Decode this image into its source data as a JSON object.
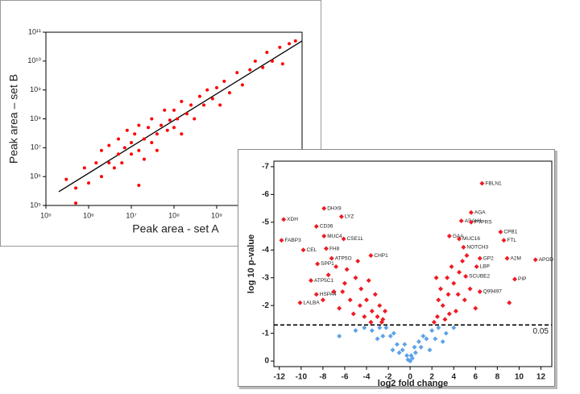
{
  "chart_data": [
    {
      "type": "scatter",
      "x_label": "Peak area - set A",
      "y_label": "Peak area – set B",
      "xscale": "log",
      "yscale": "log",
      "xlim": [
        100000,
        100000000000
      ],
      "ylim": [
        100000,
        100000000000
      ],
      "xticks": [
        {
          "value": 100000,
          "label": "10⁵"
        },
        {
          "value": 1000000,
          "label": "10⁶"
        },
        {
          "value": 10000000,
          "label": "10⁷"
        },
        {
          "value": 100000000,
          "label": "10⁸"
        },
        {
          "value": 1000000000,
          "label": "10⁹"
        }
      ],
      "yticks": [
        {
          "value": 100000,
          "label": "10⁵"
        },
        {
          "value": 1000000,
          "label": "10⁶"
        },
        {
          "value": 10000000,
          "label": "10⁷"
        },
        {
          "value": 100000000,
          "label": "10⁸"
        },
        {
          "value": 1000000000,
          "label": "10⁹"
        },
        {
          "value": 10000000000,
          "label": "10¹⁰"
        },
        {
          "value": 100000000000,
          "label": "10¹¹"
        }
      ],
      "color": "#ff0000",
      "x": [
        300000.0,
        500000.0,
        800000.0,
        1000000.0,
        1500000.0,
        2000000.0,
        2000000.0,
        3000000.0,
        3000000.0,
        4000000.0,
        5000000.0,
        5000000.0,
        6000000.0,
        7000000.0,
        8000000.0,
        10000000.0,
        10000000.0,
        12000000.0,
        15000000.0,
        15000000.0,
        20000000.0,
        20000000.0,
        25000000.0,
        30000000.0,
        30000000.0,
        40000000.0,
        40000000.0,
        50000000.0,
        60000000.0,
        70000000.0,
        80000000.0,
        100000000.0,
        100000000.0,
        120000000.0,
        150000000.0,
        150000000.0,
        200000000.0,
        250000000.0,
        300000000.0,
        400000000.0,
        500000000.0,
        600000000.0,
        800000000.0,
        1000000000.0,
        1200000000.0,
        1500000000.0,
        2000000000.0,
        3000000000.0,
        4000000000.0,
        6000000000.0,
        8000000000.0,
        12000000000.0,
        15000000000.0,
        20000000000.0,
        30000000000.0,
        35000000000.0,
        50000000000.0,
        70000000000.0,
        15000000.0,
        500000.0
      ],
      "y": [
        800000.0,
        400000.0,
        2000000.0,
        600000.0,
        3000000.0,
        1000000.0,
        8000000.0,
        3000000.0,
        12000000.0,
        2000000.0,
        6000000.0,
        20000000.0,
        3000000.0,
        10000000.0,
        40000000.0,
        6000000.0,
        15000000.0,
        30000000.0,
        8000000.0,
        60000000.0,
        20000000.0,
        4000000.0,
        50000000.0,
        15000000.0,
        100000000.0,
        30000000.0,
        8000000.0,
        60000000.0,
        200000000.0,
        40000000.0,
        90000000.0,
        50000000.0,
        200000000.0,
        100000000.0,
        30000000.0,
        400000000.0,
        150000000.0,
        300000000.0,
        100000000.0,
        600000000.0,
        300000000.0,
        1000000000.0,
        500000000.0,
        1200000000.0,
        300000000.0,
        2000000000.0,
        800000000.0,
        4000000000.0,
        1500000000.0,
        5000000000.0,
        10000000000.0,
        6000000000.0,
        20000000000.0,
        10000000000.0,
        30000000000.0,
        8000000000.0,
        40000000000.0,
        50000000000.0,
        500000.0,
        120000.0
      ],
      "trend_line": {
        "x": [
          200000.0,
          100000000000.0
        ],
        "y": [
          300000.0,
          50000000000.0
        ],
        "color": "#000000"
      }
    },
    {
      "type": "scatter",
      "x_label": "log2 fold change",
      "y_label": "log 10 p-value",
      "xlim": [
        -12.5,
        13
      ],
      "ylim": [
        0.2,
        -7.2
      ],
      "xticks": [
        -12,
        -10,
        -8,
        -6,
        -4,
        -2,
        0,
        2,
        4,
        6,
        8,
        10,
        12
      ],
      "yticks": [
        0,
        -1,
        -2,
        -3,
        -4,
        -5,
        -6,
        -7
      ],
      "series": [
        {
          "color": "#ee1c25",
          "x": [
            -5,
            -4.5,
            -4,
            -3.5,
            -3,
            -2.5,
            -6,
            -5.5,
            -7,
            -6.5,
            -4.2,
            -3.2,
            -5.2,
            -2.8,
            -7.5,
            -6.8,
            -4.8,
            -3.8,
            -2.3,
            -8,
            -5.8,
            -3.6,
            -4.6,
            -6.2,
            -2.6,
            2.5,
            3,
            3.5,
            4,
            4.5,
            3.2,
            2.8,
            4.2,
            5,
            3.8,
            2.2,
            4.8,
            3.4,
            5.5,
            2.6,
            6,
            3.6,
            4.4,
            2.4,
            5.2,
            9.1
          ],
          "y": [
            -3,
            -2.6,
            -2.2,
            -1.8,
            -1.6,
            -1.5,
            -2.8,
            -2.2,
            -2.5,
            -1.9,
            -1.6,
            -2.4,
            -1.7,
            -2,
            -3.1,
            -3.4,
            -3.6,
            -2.9,
            -1.8,
            -2.2,
            -3.3,
            -1.4,
            -2,
            -2.5,
            -1.4,
            -1.6,
            -2,
            -2.4,
            -2.8,
            -3.2,
            -1.5,
            -2.6,
            -1.8,
            -2.2,
            -3.4,
            -1.4,
            -3.6,
            -3,
            -2.6,
            -2.2,
            -1.9,
            -1.7,
            -2.4,
            -3,
            -3.8,
            -2.1
          ]
        },
        {
          "color": "#5fa3e8",
          "x": [
            0,
            0.2,
            -0.3,
            0.5,
            -0.7,
            1,
            -1.2,
            1.5,
            -1.8,
            2,
            -2.2,
            -1.5,
            1.2,
            -2.8,
            2.6,
            -3.5,
            3.3,
            -4.2,
            4,
            -5,
            -0.5,
            0.8,
            -1,
            0.4,
            -2.5,
            2.3,
            -6.5,
            -3,
            3,
            1.8,
            -1.6,
            -0.2,
            0.1
          ],
          "y": [
            0,
            -0.1,
            -0.2,
            -0.3,
            -0.4,
            -0.5,
            -0.6,
            -0.8,
            -0.9,
            -1.1,
            -1.2,
            -1,
            -0.9,
            -1.2,
            -1.2,
            -1.1,
            -1,
            -1.2,
            -1.2,
            -1.1,
            -0.6,
            -0.7,
            -0.3,
            -0.5,
            -0.9,
            -0.8,
            -0.9,
            -0.8,
            -0.7,
            -0.4,
            -0.4,
            -0.05,
            -0.2
          ]
        }
      ],
      "labeled_points": [
        {
          "label": "FBLN1",
          "x": 6.6,
          "y": -6.4
        },
        {
          "label": "DHX9",
          "x": -7.9,
          "y": -5.5
        },
        {
          "label": "AGA",
          "x": 5.6,
          "y": -5.35
        },
        {
          "label": "LYZ",
          "x": -6.3,
          "y": -5.2
        },
        {
          "label": "XDH",
          "x": -11.6,
          "y": -5.1
        },
        {
          "label": "ASAH1",
          "x": 4.7,
          "y": -5.05
        },
        {
          "label": "PTPRS",
          "x": 5.6,
          "y": -5
        },
        {
          "label": "CD36",
          "x": -8.6,
          "y": -4.85
        },
        {
          "label": "CPB1",
          "x": 8.3,
          "y": -4.65
        },
        {
          "label": "MUC4",
          "x": -7.9,
          "y": -4.5
        },
        {
          "label": "GAA",
          "x": 3.6,
          "y": -4.5
        },
        {
          "label": "CSE1L",
          "x": -6.1,
          "y": -4.4
        },
        {
          "label": "MUC16",
          "x": 4.5,
          "y": -4.4
        },
        {
          "label": "FTL",
          "x": 8.6,
          "y": -4.35
        },
        {
          "label": "FABP3",
          "x": -11.8,
          "y": -4.35
        },
        {
          "label": "NOTCH3",
          "x": 4.9,
          "y": -4.1
        },
        {
          "label": "FH8",
          "x": -7.7,
          "y": -4.05
        },
        {
          "label": "CEL",
          "x": -9.8,
          "y": -4
        },
        {
          "label": "CHP1",
          "x": -3.6,
          "y": -3.8
        },
        {
          "label": "ATP5O",
          "x": -7.2,
          "y": -3.7
        },
        {
          "label": "GP2",
          "x": 6.4,
          "y": -3.7
        },
        {
          "label": "A2M",
          "x": 8.9,
          "y": -3.7
        },
        {
          "label": "APOD",
          "x": 11.5,
          "y": -3.65
        },
        {
          "label": "SPP1",
          "x": -8.5,
          "y": -3.5
        },
        {
          "label": "LBP",
          "x": 6.1,
          "y": -3.4
        },
        {
          "label": "SCUBE2",
          "x": 5.1,
          "y": -3.05
        },
        {
          "label": "PIP",
          "x": 9.6,
          "y": -2.95
        },
        {
          "label": "ATP5C1",
          "x": -9.1,
          "y": -2.9
        },
        {
          "label": "Q99497",
          "x": 6.4,
          "y": -2.5
        },
        {
          "label": "HSPA4",
          "x": -8.6,
          "y": -2.4
        },
        {
          "label": "LALBA",
          "x": -10.1,
          "y": -2.1
        }
      ],
      "threshold": {
        "y": -1.3,
        "label": "0.05"
      }
    }
  ]
}
